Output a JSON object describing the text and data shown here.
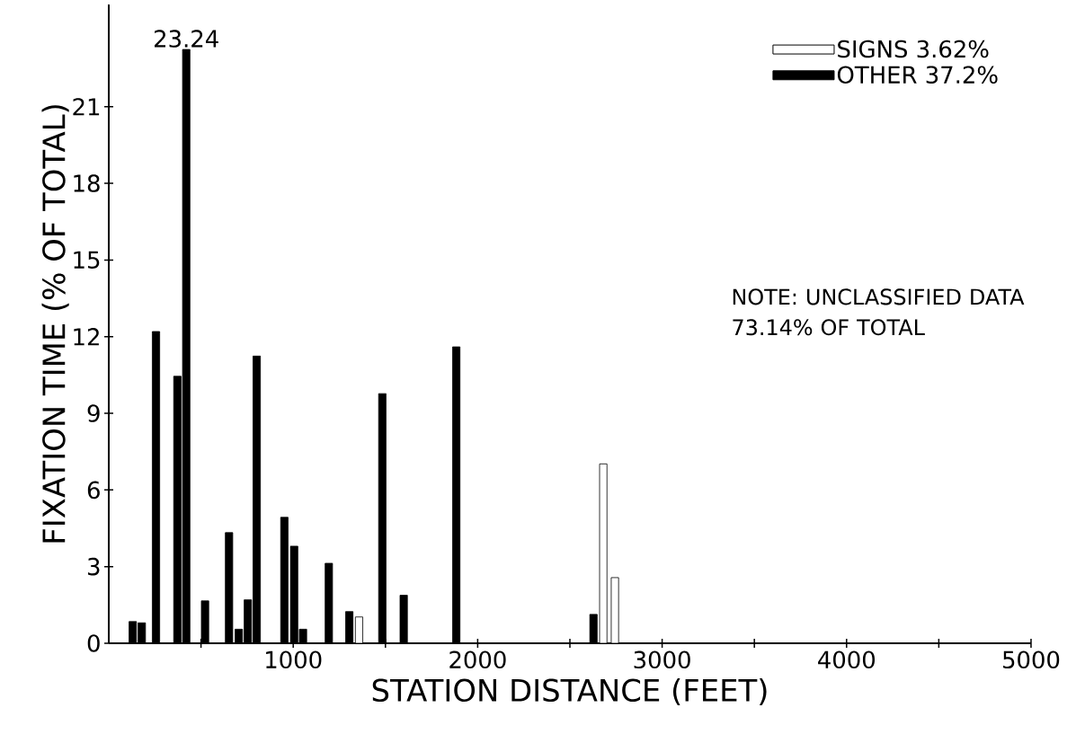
{
  "chart_data": {
    "type": "bar",
    "xlabel": "STATION DISTANCE (FEET)",
    "ylabel": "FIXATION TIME (% OF TOTAL)",
    "series": [
      {
        "name": "SIGNS 3.62%",
        "color": "#ffffff",
        "x": [
          1357,
          2681,
          2744
        ],
        "values": [
          1.03,
          7.02,
          2.57
        ]
      },
      {
        "name": "OTHER 37.2%",
        "color": "#000000",
        "x": [
          130,
          179,
          256,
          372,
          420,
          522,
          652,
          705,
          754,
          802,
          952,
          1005,
          1053,
          1193,
          1304,
          1483,
          1599,
          1884,
          2628
        ],
        "values": [
          0.85,
          0.8,
          12.2,
          10.45,
          23.24,
          1.66,
          4.33,
          0.55,
          1.7,
          11.24,
          4.93,
          3.8,
          0.55,
          3.13,
          1.24,
          9.77,
          1.88,
          11.6,
          1.13
        ],
        "value_labels": [
          null,
          null,
          null,
          null,
          "23.24",
          null,
          null,
          null,
          null,
          null,
          null,
          null,
          null,
          null,
          null,
          null,
          null,
          null,
          null
        ]
      }
    ],
    "xlim": [
      0,
      5000
    ],
    "xticks": [
      {
        "value": 500,
        "label": null
      },
      1000,
      {
        "value": 1500,
        "label": null
      },
      2000,
      {
        "value": 2500,
        "label": null
      },
      3000,
      {
        "value": 3500,
        "label": null
      },
      4000,
      {
        "value": 4500,
        "label": null
      },
      5000
    ],
    "ylim": [
      0,
      25
    ],
    "yticks": [
      0,
      3,
      6,
      9,
      12,
      15,
      18,
      21
    ],
    "grid": false,
    "legend": "top right",
    "annotations": [
      "NOTE: UNCLASSIFIED DATA 73.14% OF TOTAL"
    ]
  }
}
